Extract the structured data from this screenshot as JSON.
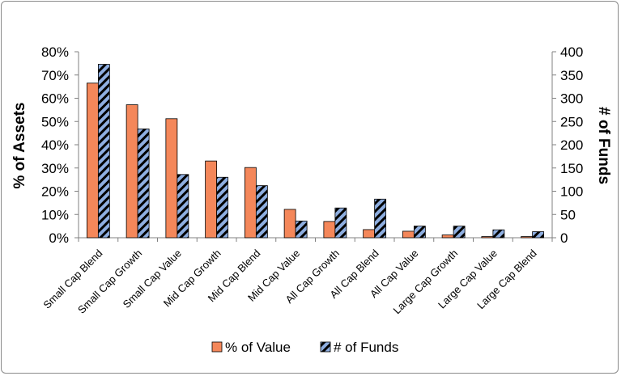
{
  "chart_data": {
    "type": "bar",
    "categories": [
      "Small Cap Blend",
      "Small Cap Growth",
      "Small Cap Value",
      "Mid Cap Growth",
      "Mid Cap Blend",
      "Mid Cap Value",
      "All Cap Growth",
      "All Cap Blend",
      "All Cap Value",
      "Large Cap Growth",
      "Large Cap Value",
      "Large Cap Blend"
    ],
    "series": [
      {
        "name": "% of Value",
        "axis": "left",
        "values": [
          66.5,
          57.2,
          51.2,
          33.0,
          30.2,
          12.2,
          7.0,
          3.5,
          2.8,
          1.2,
          0.5,
          0.5
        ],
        "color": "#f4875a"
      },
      {
        "name": "# of Funds",
        "axis": "right",
        "values": [
          373,
          234,
          136,
          130,
          112,
          36,
          64,
          83,
          25,
          25,
          17,
          13
        ],
        "color": "#8eaee0",
        "pattern": "diagonal-stripes"
      }
    ],
    "ylabel": "% of Assets",
    "y2label": "# of Funds",
    "ylim": [
      0,
      80
    ],
    "y2lim": [
      0,
      400
    ],
    "yticks": [
      "0%",
      "10%",
      "20%",
      "30%",
      "40%",
      "50%",
      "60%",
      "70%",
      "80%"
    ],
    "y2ticks": [
      "0",
      "50",
      "100",
      "150",
      "200",
      "250",
      "300",
      "350",
      "400"
    ],
    "grid": false,
    "legend_position": "bottom"
  }
}
